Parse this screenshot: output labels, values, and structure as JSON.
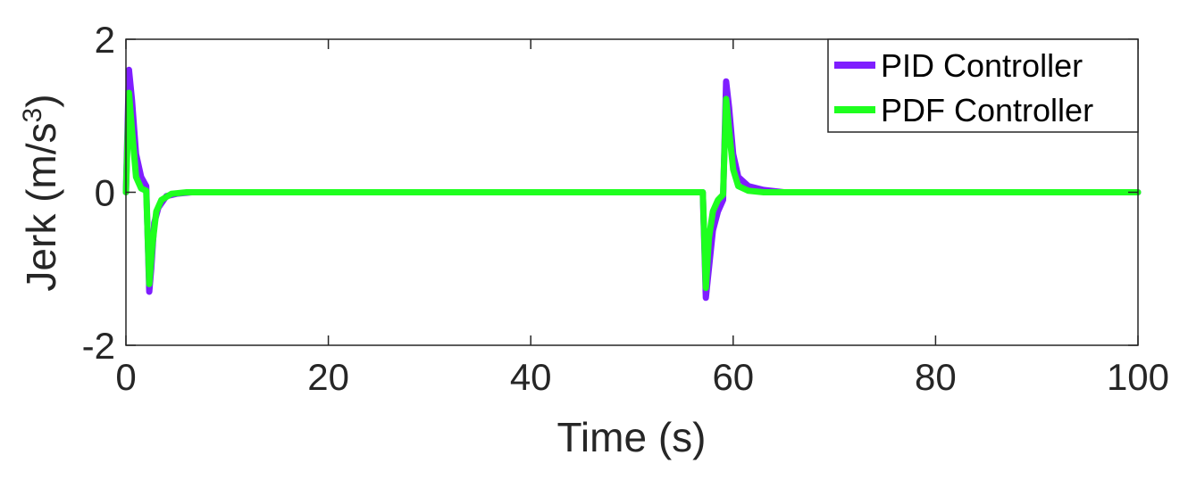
{
  "chart_data": {
    "type": "line",
    "title": "",
    "xlabel": "Time (s)",
    "ylabel_main": "Jerk (m/s",
    "ylabel_sup": "3",
    "ylabel_close": ")",
    "xlim": [
      0,
      100
    ],
    "ylim": [
      -2,
      2
    ],
    "xticks": [
      0,
      20,
      40,
      60,
      80,
      100
    ],
    "xtick_labels": [
      "0",
      "20",
      "40",
      "60",
      "80",
      "100"
    ],
    "yticks": [
      -2,
      0,
      2
    ],
    "ytick_labels": [
      "-2",
      "0",
      "2"
    ],
    "grid": false,
    "legend_position": "top-right",
    "series": [
      {
        "name": "PID Controller",
        "color": "#7f1eff",
        "x": [
          0,
          0.3,
          0.6,
          1.0,
          1.5,
          2.0,
          2.3,
          2.5,
          2.8,
          3.2,
          4.0,
          5.0,
          6.5,
          8.0,
          57.0,
          57.3,
          57.6,
          58.0,
          58.5,
          59.0,
          59.3,
          59.6,
          60.0,
          60.5,
          61.5,
          63.0,
          65.0,
          100
        ],
        "y": [
          0,
          1.6,
          1.2,
          0.5,
          0.2,
          0.08,
          -1.3,
          -1.0,
          -0.4,
          -0.2,
          -0.05,
          -0.02,
          0,
          0,
          0,
          -1.38,
          -1.0,
          -0.5,
          -0.25,
          -0.1,
          1.45,
          1.1,
          0.5,
          0.2,
          0.08,
          0.03,
          0,
          0
        ]
      },
      {
        "name": "PDF Controller",
        "color": "#1eff1e",
        "x": [
          0,
          0.3,
          0.6,
          1.0,
          1.5,
          2.0,
          2.3,
          2.6,
          3.0,
          3.5,
          4.5,
          6.0,
          8.0,
          57.0,
          57.3,
          57.6,
          58.0,
          58.5,
          59.0,
          59.3,
          59.6,
          60.0,
          60.5,
          61.5,
          63.0,
          100
        ],
        "y": [
          0,
          1.3,
          0.8,
          0.2,
          0.05,
          0.02,
          -1.2,
          -0.7,
          -0.25,
          -0.1,
          -0.02,
          0,
          0,
          0,
          -1.25,
          -0.6,
          -0.25,
          -0.1,
          -0.03,
          1.22,
          0.8,
          0.3,
          0.08,
          0.02,
          0,
          0
        ]
      }
    ]
  }
}
